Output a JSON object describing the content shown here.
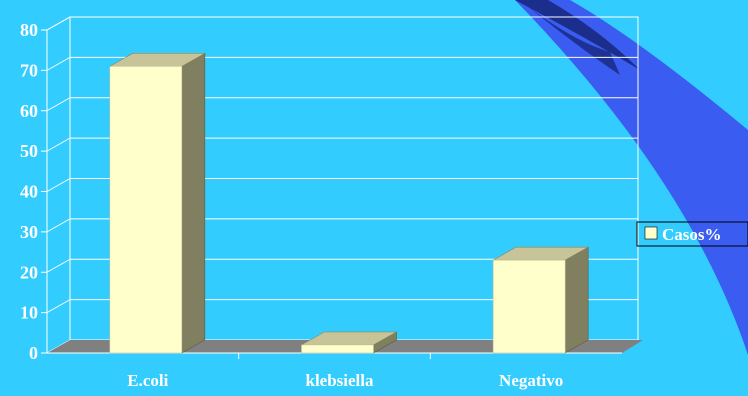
{
  "chart_data": {
    "type": "bar",
    "style": "3d-column",
    "categories": [
      "E.coli",
      "klebsiella",
      "Negativo"
    ],
    "series": [
      {
        "name": "Casos%",
        "values": [
          71,
          2,
          23
        ]
      }
    ],
    "yticks": [
      "0",
      "10",
      "20",
      "30",
      "40",
      "50",
      "60",
      "70",
      "80"
    ],
    "ylim": [
      0,
      80
    ],
    "grid": true,
    "legend_position": "right",
    "colors": {
      "background": "#33ccff",
      "bar_front": "#ffffcc",
      "bar_top": "#c8c49a",
      "bar_side": "#808060",
      "floor": "#808080",
      "gridline": "#ffffff",
      "text": "#ffffff",
      "swoosh_dark": "#1c2e8c",
      "swoosh_light": "#3a5cf0"
    }
  }
}
